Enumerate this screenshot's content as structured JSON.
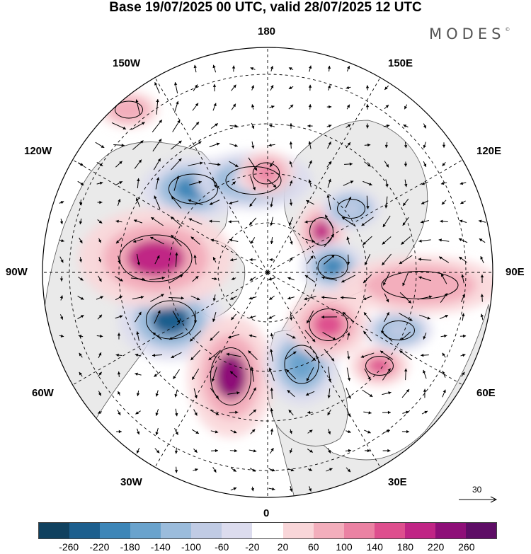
{
  "title": "Base 19/07/2025 00 UTC, valid 28/07/2025 12 UTC",
  "brand": "MODES",
  "brand_mark": "©",
  "longitude_labels": {
    "top": "180",
    "top_left": "150W",
    "top_right": "150E",
    "upper_left": "120W",
    "upper_right": "120E",
    "left": "90W",
    "right": "90E",
    "lower_left": "60W",
    "lower_right": "60E",
    "bottom_left": "30W",
    "bottom_right": "30E",
    "bottom": "0"
  },
  "wind_scale": {
    "label": "30"
  },
  "colorbar": {
    "colors": [
      "#10415f",
      "#1c5f8e",
      "#3d86b8",
      "#6aa3cd",
      "#9bbcdc",
      "#c0cbe4",
      "#dcdcee",
      "#ffffff",
      "#f9d6d9",
      "#f3aebc",
      "#eb82a3",
      "#de4f8e",
      "#c02585",
      "#8e0f78",
      "#5e0d66"
    ],
    "ticks": [
      "-260",
      "-220",
      "-180",
      "-140",
      "-100",
      "-60",
      "-20",
      "20",
      "60",
      "100",
      "140",
      "180",
      "220",
      "260"
    ]
  },
  "anomalies": [
    {
      "name": "anomaly-neg-west-pacific",
      "x": -105,
      "y": -118,
      "rx": 46,
      "ry": 28,
      "level": "-220"
    },
    {
      "name": "anomaly-neg-canada",
      "x": -137,
      "y": 67,
      "rx": 46,
      "ry": 36,
      "level": "-260"
    },
    {
      "name": "anomaly-pos-alaska",
      "x": -158,
      "y": -20,
      "rx": 68,
      "ry": 44,
      "level": "180"
    },
    {
      "name": "anomaly-pos-north-atlantic",
      "x": -52,
      "y": 147,
      "rx": 38,
      "ry": 54,
      "level": "220"
    },
    {
      "name": "anomaly-neg-scandinavia",
      "x": 48,
      "y": 130,
      "rx": 32,
      "ry": 36,
      "level": "-180"
    },
    {
      "name": "anomaly-pos-arctic-siberia",
      "x": 76,
      "y": -58,
      "rx": 22,
      "ry": 26,
      "level": "180"
    },
    {
      "name": "anomaly-neg-kara-sea",
      "x": 92,
      "y": -8,
      "rx": 28,
      "ry": 22,
      "level": "-220"
    },
    {
      "name": "anomaly-pos-west-siberia",
      "x": 86,
      "y": 74,
      "rx": 36,
      "ry": 30,
      "level": "140"
    },
    {
      "name": "anomaly-pos-central-asia",
      "x": 158,
      "y": 132,
      "rx": 26,
      "ry": 18,
      "level": "140"
    },
    {
      "name": "anomaly-neg-east-asia",
      "x": 185,
      "y": 82,
      "rx": 30,
      "ry": 18,
      "level": "-100"
    },
    {
      "name": "anomaly-pos-east-asia",
      "x": 215,
      "y": 18,
      "rx": 72,
      "ry": 26,
      "level": "60"
    },
    {
      "name": "anomaly-neg-north-pacific",
      "x": -20,
      "y": -130,
      "rx": 52,
      "ry": 26,
      "level": "-60"
    },
    {
      "name": "anomaly-pos-bering",
      "x": -2,
      "y": -140,
      "rx": 25,
      "ry": 20,
      "level": "100"
    },
    {
      "name": "anomaly-neg-okhotsk",
      "x": 118,
      "y": -90,
      "rx": 26,
      "ry": 18,
      "level": "-100"
    },
    {
      "name": "anomaly-pos-pacific",
      "x": -196,
      "y": -230,
      "rx": 26,
      "ry": 16,
      "level": "60"
    }
  ]
}
